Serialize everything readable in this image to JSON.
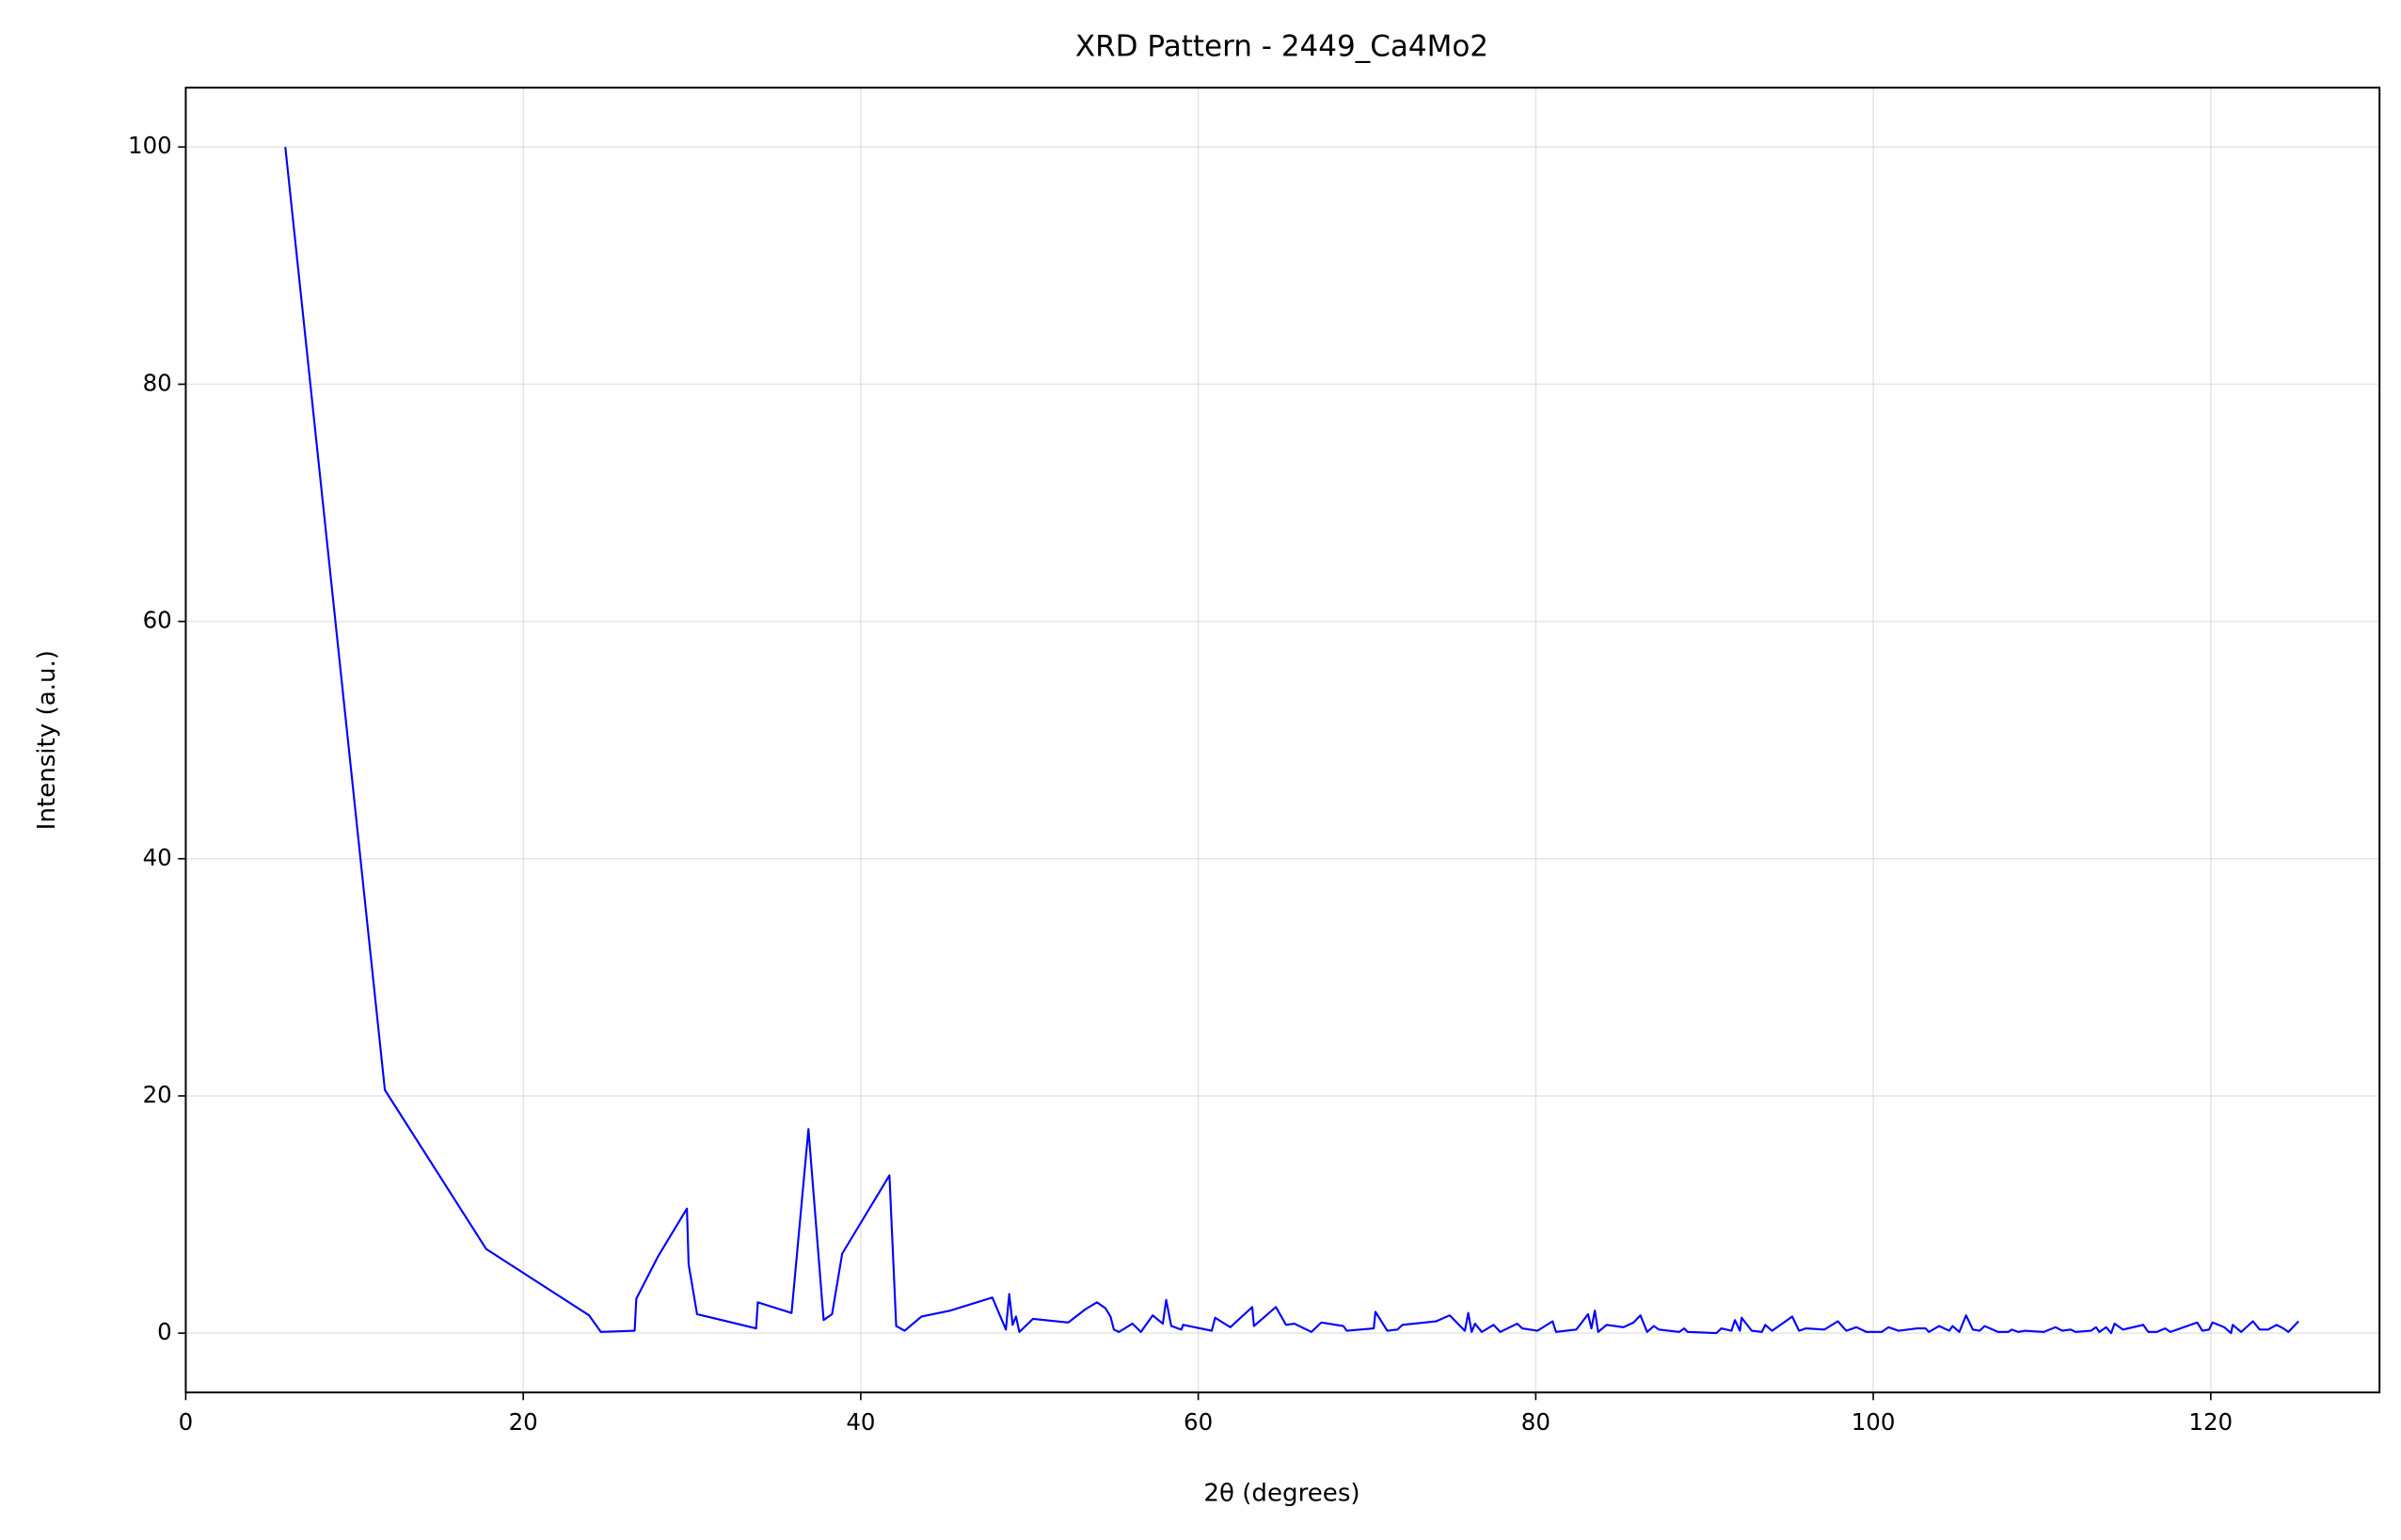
{
  "chart_data": {
    "type": "line",
    "title": "XRD Pattern - 2449_Ca4Mo2",
    "xlabel": "2θ (degrees)",
    "ylabel": "Intensity (a.u.)",
    "xlim": [
      0,
      130
    ],
    "ylim": [
      -5,
      105
    ],
    "xticks": [
      0,
      20,
      40,
      60,
      80,
      100,
      120
    ],
    "yticks": [
      0,
      20,
      40,
      60,
      80,
      100
    ],
    "grid": true,
    "series": [
      {
        "color": "#0000ff",
        "x": [
          5.9,
          11.8,
          17.8,
          23.9,
          24.6,
          26.6,
          26.7,
          28.0,
          29.7,
          29.8,
          30.3,
          33.8,
          33.9,
          35.9,
          36.9,
          37.8,
          38.3,
          38.9,
          41.7,
          42.1,
          42.6,
          43.6,
          45.3,
          47.8,
          48.6,
          48.8,
          49.0,
          49.2,
          49.4,
          50.2,
          52.3,
          53.3,
          54.0,
          54.5,
          54.8,
          55.0,
          55.3,
          56.1,
          56.6,
          57.3,
          57.9,
          58.1,
          58.4,
          59.0,
          59.1,
          60.8,
          61.0,
          61.9,
          63.2,
          63.3,
          64.6,
          65.2,
          65.7,
          66.7,
          67.3,
          68.6,
          68.8,
          70.4,
          70.5,
          71.2,
          71.8,
          72.1,
          74.1,
          74.9,
          75.8,
          76.0,
          76.2,
          76.4,
          76.8,
          77.5,
          77.9,
          78.9,
          79.2,
          80.1,
          81.0,
          81.2,
          82.4,
          83.1,
          83.3,
          83.5,
          83.7,
          84.2,
          85.2,
          85.8,
          86.2,
          86.6,
          87.0,
          87.3,
          88.5,
          88.8,
          89.0,
          90.7,
          91.0,
          91.6,
          91.8,
          92.1,
          92.2,
          92.8,
          93.4,
          93.6,
          94.0,
          95.2,
          95.6,
          96.0,
          97.1,
          97.9,
          98.4,
          99.0,
          99.6,
          100.5,
          100.9,
          101.5,
          102.6,
          103.1,
          103.3,
          103.9,
          104.5,
          104.7,
          105.1,
          105.5,
          105.9,
          106.3,
          106.6,
          107.4,
          108.0,
          108.2,
          108.6,
          109.0,
          110.1,
          110.8,
          111.2,
          111.7,
          112.0,
          112.9,
          113.2,
          113.4,
          113.8,
          114.1,
          114.3,
          114.8,
          116.0,
          116.3,
          116.8,
          117.3,
          117.6,
          119.2,
          119.5,
          119.9,
          120.1,
          120.8,
          121.2,
          121.3,
          121.8,
          122.5,
          122.9,
          123.4,
          123.9,
          124.3,
          124.6,
          125.2
        ],
        "values": [
          100,
          20.5,
          7.1,
          1.5,
          0.1,
          0.2,
          2.9,
          6.5,
          10.5,
          5.8,
          1.6,
          0.4,
          2.6,
          1.7,
          17.2,
          1.1,
          1.6,
          6.7,
          13.3,
          0.6,
          0.2,
          1.4,
          1.9,
          3.0,
          0.3,
          3.3,
          0.7,
          1.4,
          0.1,
          1.2,
          0.9,
          2.0,
          2.6,
          2.1,
          1.4,
          0.3,
          0.1,
          0.8,
          0.1,
          1.5,
          0.8,
          2.8,
          0.6,
          0.3,
          0.7,
          0.2,
          1.3,
          0.5,
          2.2,
          0.6,
          2.2,
          0.7,
          0.8,
          0.1,
          0.9,
          0.6,
          0.2,
          0.4,
          1.8,
          0.2,
          0.3,
          0.7,
          1.0,
          1.5,
          0.2,
          1.7,
          0.1,
          0.8,
          0.1,
          0.7,
          0.1,
          0.8,
          0.4,
          0.2,
          1.0,
          0.1,
          0.3,
          1.6,
          0.4,
          1.9,
          0.1,
          0.7,
          0.5,
          0.9,
          1.5,
          0.1,
          0.6,
          0.3,
          0.1,
          0.4,
          0.1,
          0.0,
          0.4,
          0.2,
          1.1,
          0.2,
          1.3,
          0.2,
          0.1,
          0.7,
          0.2,
          1.4,
          0.2,
          0.4,
          0.3,
          1.0,
          0.2,
          0.5,
          0.1,
          0.1,
          0.5,
          0.2,
          0.4,
          0.4,
          0.1,
          0.6,
          0.2,
          0.6,
          0.1,
          1.5,
          0.3,
          0.2,
          0.6,
          0.1,
          0.1,
          0.3,
          0.1,
          0.2,
          0.1,
          0.5,
          0.2,
          0.3,
          0.1,
          0.2,
          0.5,
          0.1,
          0.5,
          0.0,
          0.8,
          0.3,
          0.7,
          0.1,
          0.1,
          0.4,
          0.1,
          0.9,
          0.2,
          0.3,
          0.9,
          0.5,
          0.0,
          0.7,
          0.1,
          1.0,
          0.3,
          0.3,
          0.7,
          0.4,
          0.1,
          1.0
        ]
      }
    ]
  }
}
